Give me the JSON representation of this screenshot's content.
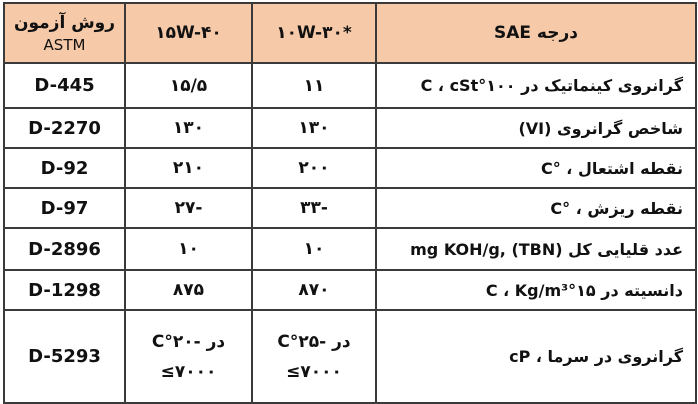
{
  "table": {
    "headers": {
      "astm": "روش آزمون",
      "astm_sub": "ASTM",
      "grade_15w40": "۱۵W-۴۰",
      "grade_10w30": "۱۰W-۳۰*",
      "property": "درجه SAE"
    },
    "rows": [
      {
        "property": "گرانروی کینماتیک در ۱۰۰°C ، cSt",
        "grade_10w30": "۱۱",
        "grade_15w40": "۱۵/۵",
        "astm": "D-445"
      },
      {
        "property": "شاخص گرانروی (VI)",
        "grade_10w30": "۱۳۰",
        "grade_15w40": "۱۳۰",
        "astm": "D-2270"
      },
      {
        "property": "نقطه اشتعال ، °C",
        "grade_10w30": "۲۰۰",
        "grade_15w40": "۲۱۰",
        "astm": "D-92"
      },
      {
        "property": "نقطه ریزش ، °C",
        "grade_10w30": "-۳۳",
        "grade_15w40": "-۲۷",
        "astm": "D-97"
      },
      {
        "property": "عدد قلیایی کل (TBN) ,mg KOH/g",
        "grade_10w30": "۱۰",
        "grade_15w40": "۱۰",
        "astm": "D-2896"
      },
      {
        "property": "دانسیته در ۱۵°C ، Kg/m³",
        "grade_10w30": "۸۷۰",
        "grade_15w40": "۸۷۵",
        "astm": "D-1298"
      },
      {
        "property": "گرانروی در سرما ، cP",
        "grade_10w30": "در -۲۵°C",
        "grade_10w30_sub": "≤۷۰۰۰",
        "grade_15w40": "در -۲۰°C",
        "grade_15w40_sub": "≤۷۰۰۰",
        "astm": "D-5293"
      }
    ]
  }
}
